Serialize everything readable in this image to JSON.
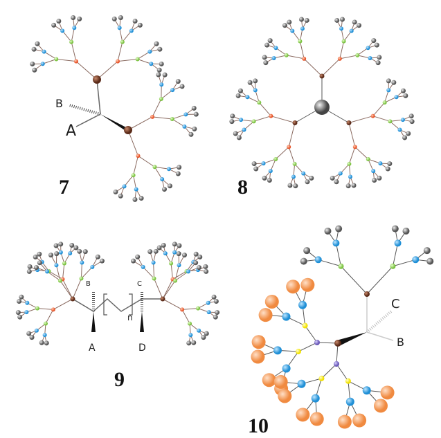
{
  "compounds": [
    {
      "number": "7",
      "substituents": [
        "A",
        "B"
      ]
    },
    {
      "number": "8"
    },
    {
      "number": "9",
      "substituents": [
        "A",
        "B",
        "C",
        "D"
      ],
      "repeat": "n"
    },
    {
      "number": "10",
      "substituents": [
        "B",
        "C"
      ]
    }
  ]
}
